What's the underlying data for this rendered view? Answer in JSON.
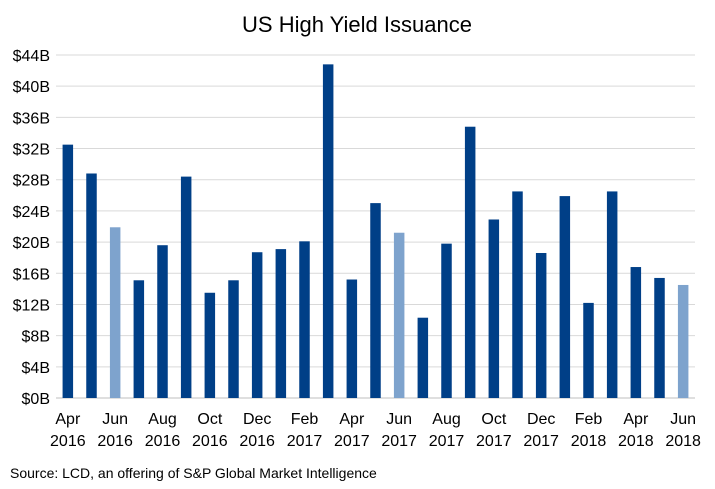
{
  "chart_data": {
    "type": "bar",
    "title": "US High Yield Issuance",
    "source": "Source: LCD, an offering of S&P Global Market Intelligence",
    "categories": [
      "Apr 2016",
      "May 2016",
      "Jun 2016",
      "Jul 2016",
      "Aug 2016",
      "Sep 2016",
      "Oct 2016",
      "Nov 2016",
      "Dec 2016",
      "Jan 2017",
      "Feb 2017",
      "Mar 2017",
      "Apr 2017",
      "May 2017",
      "Jun 2017",
      "Jul 2017",
      "Aug 2017",
      "Sep 2017",
      "Oct 2017",
      "Nov 2017",
      "Dec 2017",
      "Jan 2018",
      "Feb 2018",
      "Mar 2018",
      "Apr 2018",
      "May 2018",
      "Jun 2018"
    ],
    "x_tick_labels": [
      {
        "month": "Apr",
        "year": "2016"
      },
      {
        "month": "Jun",
        "year": "2016"
      },
      {
        "month": "Aug",
        "year": "2016"
      },
      {
        "month": "Oct",
        "year": "2016"
      },
      {
        "month": "Dec",
        "year": "2016"
      },
      {
        "month": "Feb",
        "year": "2017"
      },
      {
        "month": "Apr",
        "year": "2017"
      },
      {
        "month": "Jun",
        "year": "2017"
      },
      {
        "month": "Aug",
        "year": "2017"
      },
      {
        "month": "Oct",
        "year": "2017"
      },
      {
        "month": "Dec",
        "year": "2017"
      },
      {
        "month": "Feb",
        "year": "2018"
      },
      {
        "month": "Apr",
        "year": "2018"
      },
      {
        "month": "Jun",
        "year": "2018"
      }
    ],
    "values": [
      32.5,
      28.8,
      21.9,
      15.1,
      19.6,
      28.4,
      13.5,
      15.1,
      18.7,
      19.1,
      20.1,
      42.8,
      15.2,
      25.0,
      21.2,
      10.3,
      19.8,
      34.8,
      22.9,
      26.5,
      18.6,
      25.9,
      12.2,
      26.5,
      16.8,
      15.4,
      14.5
    ],
    "highlighted": [
      false,
      false,
      true,
      false,
      false,
      false,
      false,
      false,
      false,
      false,
      false,
      false,
      false,
      false,
      true,
      false,
      false,
      false,
      false,
      false,
      false,
      false,
      false,
      false,
      false,
      false,
      true
    ],
    "y_tick_labels": [
      "$0B",
      "$4B",
      "$8B",
      "$12B",
      "$16B",
      "$20B",
      "$24B",
      "$28B",
      "$32B",
      "$36B",
      "$40B",
      "$44B"
    ],
    "ylim": [
      0,
      44
    ],
    "y_tick_step": 4,
    "grid": true,
    "colors": {
      "bar": "#003f87",
      "bar_highlight": "#7ea3cd"
    }
  }
}
